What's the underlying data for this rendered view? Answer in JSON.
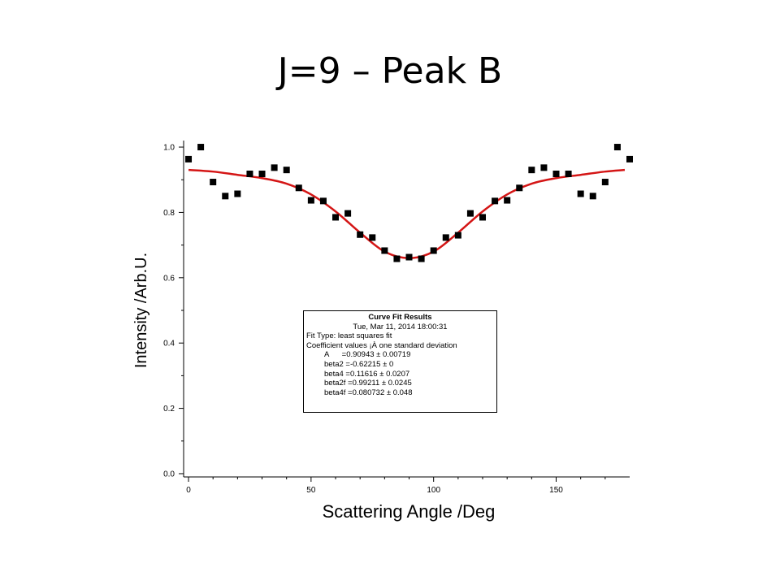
{
  "slide": {
    "title": "J=9 – Peak B"
  },
  "chart_data": {
    "type": "scatter",
    "xlabel": "Scattering Angle /Deg",
    "ylabel": "Intensity /Arb.U.",
    "xlim": [
      -2,
      180
    ],
    "ylim": [
      -0.01,
      1.02
    ],
    "x_ticks": [
      0,
      50,
      100,
      150
    ],
    "y_ticks": [
      0.0,
      0.2,
      0.4,
      0.6,
      0.8,
      1.0
    ],
    "x_tick_labels": [
      "0",
      "50",
      "100",
      "150"
    ],
    "y_tick_labels": [
      "0.0",
      "0.2",
      "0.4",
      "0.6",
      "0.8",
      "1.0"
    ],
    "grid": false,
    "series": [
      {
        "kind": "markers",
        "marker": "square",
        "color": "#000000",
        "x": [
          0,
          5,
          10,
          15,
          20,
          25,
          30,
          35,
          40,
          45,
          50,
          55,
          60,
          65,
          70,
          75,
          80,
          85,
          90,
          95,
          100,
          105,
          110,
          115,
          120,
          125,
          130,
          135,
          140,
          145,
          150,
          155,
          160,
          165,
          170,
          175,
          180
        ],
        "y": [
          0.963,
          1.0,
          0.893,
          0.85,
          0.857,
          0.918,
          0.918,
          0.937,
          0.93,
          0.875,
          0.837,
          0.835,
          0.785,
          0.797,
          0.732,
          0.723,
          0.683,
          0.658,
          0.663,
          0.658,
          0.683,
          0.723,
          0.73,
          0.797,
          0.785,
          0.835,
          0.837,
          0.875,
          0.93,
          0.937,
          0.918,
          0.918,
          0.857,
          0.85,
          0.893,
          1.0,
          0.963
        ]
      },
      {
        "kind": "line",
        "color": "#d41515",
        "x": [
          0,
          10,
          20,
          30,
          40,
          50,
          60,
          70,
          80,
          90,
          100,
          110,
          120,
          130,
          140,
          150,
          160,
          170,
          178
        ],
        "y": [
          0.93,
          0.925,
          0.915,
          0.905,
          0.888,
          0.855,
          0.803,
          0.738,
          0.68,
          0.66,
          0.68,
          0.738,
          0.803,
          0.855,
          0.888,
          0.905,
          0.915,
          0.925,
          0.93
        ]
      }
    ],
    "annotation": {
      "title": "Curve Fit Results",
      "date": "Tue, Mar 11, 2014 18:00:31",
      "fit_type": "Fit Type: least squares fit",
      "coef_header": "Coefficient values ¡À one standard deviation",
      "coefficients": [
        "A      =0.90943 ± 0.00719",
        "beta2 =-0.62215 ± 0",
        "beta4 =0.11616 ± 0.0207",
        "beta2f =0.99211 ± 0.0245",
        "beta4f =0.080732 ± 0.048"
      ]
    }
  }
}
